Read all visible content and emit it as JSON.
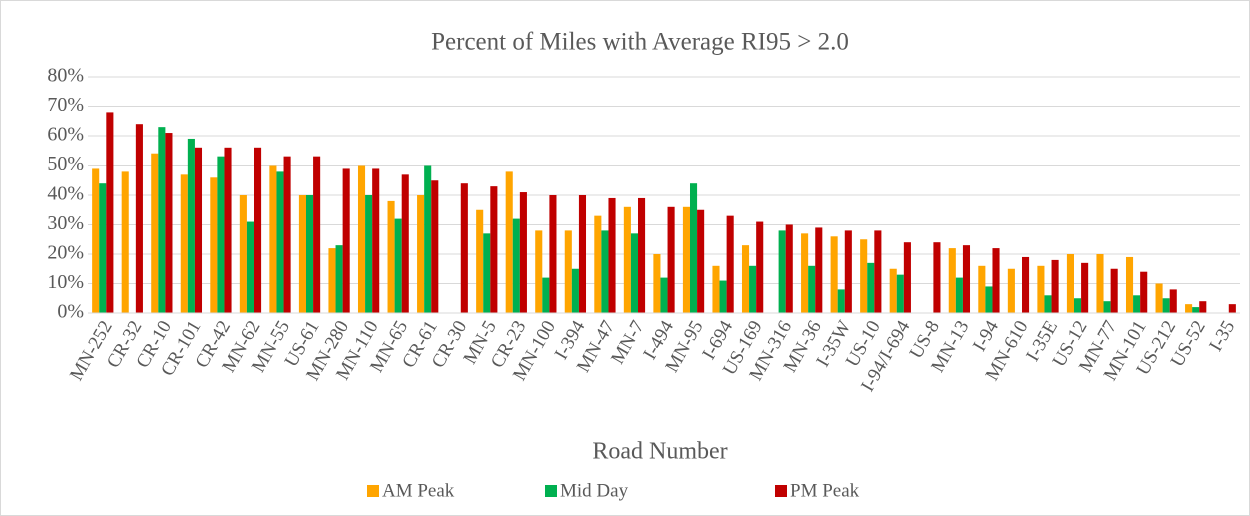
{
  "chart_data": {
    "type": "bar",
    "title": "Percent of Miles with Average RI95 > 2.0",
    "x_label": "Road Number",
    "categories": [
      "MN-252",
      "CR-32",
      "CR-10",
      "CR-101",
      "CR-42",
      "MN-62",
      "MN-55",
      "US-61",
      "MN-280",
      "MN-110",
      "MN-65",
      "CR-61",
      "CR-30",
      "MN-5",
      "CR-23",
      "MN-100",
      "I-394",
      "MN-47",
      "MN-7",
      "I-494",
      "MN-95",
      "I-694",
      "US-169",
      "MN-316",
      "MN-36",
      "I-35W",
      "US-10",
      "I-94/I-694",
      "US-8",
      "MN-13",
      "I-94",
      "MN-610",
      "I-35E",
      "US-12",
      "MN-77",
      "MN-101",
      "US-212",
      "US-52",
      "I-35"
    ],
    "series": [
      {
        "name": "AM Peak",
        "color": "#ffa500",
        "values": [
          49,
          48,
          54,
          47,
          46,
          40,
          50,
          40,
          22,
          50,
          38,
          40,
          0,
          35,
          48,
          28,
          28,
          33,
          36,
          20,
          36,
          16,
          23,
          0,
          27,
          26,
          25,
          15,
          0,
          22,
          16,
          15,
          16,
          20,
          20,
          19,
          10,
          3,
          0
        ]
      },
      {
        "name": "Mid Day",
        "color": "#00b050",
        "values": [
          44,
          0,
          63,
          59,
          53,
          31,
          48,
          40,
          23,
          40,
          32,
          50,
          0,
          27,
          32,
          12,
          15,
          28,
          27,
          12,
          44,
          11,
          16,
          28,
          16,
          8,
          17,
          13,
          0,
          12,
          9,
          0,
          6,
          5,
          4,
          6,
          5,
          2,
          0
        ]
      },
      {
        "name": "PM Peak",
        "color": "#c00000",
        "values": [
          68,
          64,
          61,
          56,
          56,
          56,
          53,
          53,
          49,
          49,
          47,
          45,
          44,
          43,
          41,
          40,
          40,
          39,
          39,
          36,
          35,
          33,
          31,
          30,
          29,
          28,
          28,
          24,
          24,
          23,
          22,
          19,
          18,
          17,
          15,
          14,
          8,
          4,
          3
        ]
      }
    ],
    "ylim": [
      0,
      80
    ],
    "yticks": [
      {
        "value": 0,
        "label": "0%"
      },
      {
        "value": 10,
        "label": "10%"
      },
      {
        "value": 20,
        "label": "20%"
      },
      {
        "value": 30,
        "label": "30%"
      },
      {
        "value": 40,
        "label": "40%"
      },
      {
        "value": 50,
        "label": "50%"
      },
      {
        "value": 60,
        "label": "60%"
      },
      {
        "value": 70,
        "label": "70%"
      },
      {
        "value": 80,
        "label": "80%"
      }
    ],
    "grid": true,
    "legend": "bottom"
  }
}
